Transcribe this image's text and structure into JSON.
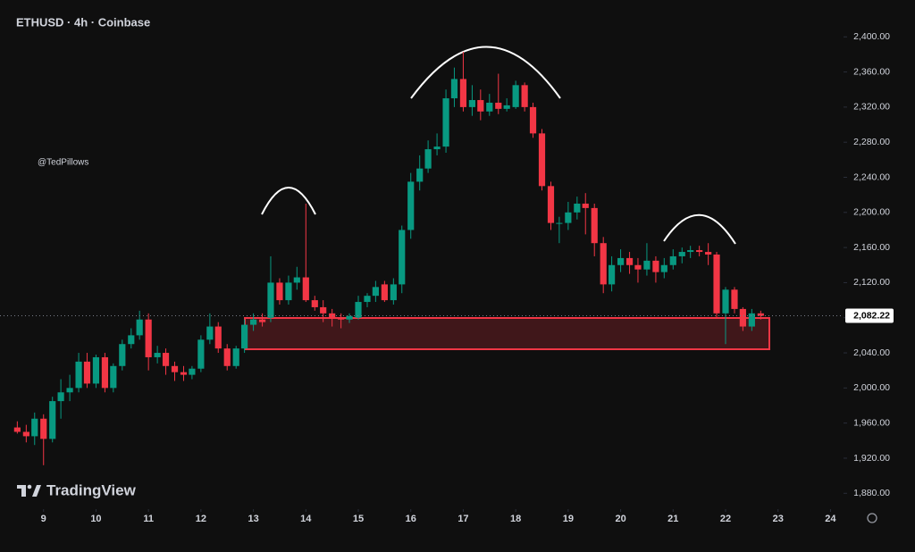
{
  "chart_data": {
    "type": "candlestick",
    "title": "ETHUSD · 4h · Coinbase",
    "watermark": "@TedPillows",
    "brand": "TradingView",
    "up_color": "#089981",
    "down_color": "#f23645",
    "xlim": [
      8.17,
      24.18
    ],
    "xticks": [
      9,
      10,
      11,
      12,
      13,
      14,
      15,
      16,
      17,
      18,
      19,
      20,
      21,
      22,
      23,
      24
    ],
    "ylim": [
      1864,
      2442
    ],
    "yticks": [
      {
        "value": 1880,
        "label": "1,880.00"
      },
      {
        "value": 1920,
        "label": "1,920.00"
      },
      {
        "value": 1960,
        "label": "1,960.00"
      },
      {
        "value": 2000,
        "label": "2,000.00"
      },
      {
        "value": 2040,
        "label": "2,040.00"
      },
      {
        "value": 2080,
        "label": "2,080.00"
      },
      {
        "value": 2120,
        "label": "2,120.00"
      },
      {
        "value": 2160,
        "label": "2,160.00"
      },
      {
        "value": 2200,
        "label": "2,200.00"
      },
      {
        "value": 2240,
        "label": "2,240.00"
      },
      {
        "value": 2280,
        "label": "2,280.00"
      },
      {
        "value": 2320,
        "label": "2,320.00"
      },
      {
        "value": 2360,
        "label": "2,360.00"
      },
      {
        "value": 2400,
        "label": "2,400.00"
      }
    ],
    "last_price": {
      "value": 2082.22,
      "label": "2,082.22"
    },
    "x": [
      8.5,
      8.67,
      8.83,
      9,
      9.17,
      9.33,
      9.5,
      9.67,
      9.83,
      10,
      10.17,
      10.33,
      10.5,
      10.67,
      10.83,
      11,
      11.17,
      11.33,
      11.5,
      11.67,
      11.83,
      12,
      12.17,
      12.33,
      12.5,
      12.67,
      12.83,
      13,
      13.17,
      13.33,
      13.5,
      13.67,
      13.83,
      14,
      14.17,
      14.33,
      14.5,
      14.67,
      14.83,
      15,
      15.17,
      15.33,
      15.5,
      15.67,
      15.83,
      16,
      16.17,
      16.33,
      16.5,
      16.67,
      16.83,
      17,
      17.17,
      17.33,
      17.5,
      17.67,
      17.83,
      18,
      18.17,
      18.33,
      18.5,
      18.67,
      18.83,
      19,
      19.17,
      19.33,
      19.5,
      19.67,
      19.83,
      20,
      20.17,
      20.33,
      20.5,
      20.67,
      20.83,
      21,
      21.17,
      21.33,
      21.5,
      21.67,
      21.83,
      22,
      22.17,
      22.33,
      22.5,
      22.67
    ],
    "open": [
      1955,
      1950,
      1945,
      1965,
      1942,
      1985,
      1995,
      2000,
      2030,
      2005,
      2035,
      2000,
      2025,
      2050,
      2060,
      2078,
      2035,
      2040,
      2025,
      2018,
      2015,
      2022,
      2055,
      2070,
      2045,
      2025,
      2045,
      2072,
      2078,
      2080,
      2120,
      2100,
      2120,
      2126,
      2100,
      2092,
      2085,
      2080,
      2078,
      2080,
      2098,
      2105,
      2118,
      2100,
      2118,
      2180,
      2235,
      2250,
      2272,
      2275,
      2330,
      2352,
      2320,
      2328,
      2315,
      2325,
      2318,
      2320,
      2345,
      2320,
      2290,
      2230,
      2188,
      2188,
      2200,
      2210,
      2205,
      2165,
      2118,
      2140,
      2148,
      2140,
      2135,
      2145,
      2132,
      2140,
      2150,
      2155,
      2157,
      2155,
      2152,
      2085,
      2112,
      2090,
      2070,
      2085
    ],
    "high": [
      1962,
      1958,
      1972,
      1970,
      1990,
      2010,
      2015,
      2040,
      2040,
      2038,
      2040,
      2028,
      2055,
      2068,
      2088,
      2085,
      2048,
      2045,
      2030,
      2025,
      2025,
      2060,
      2085,
      2075,
      2050,
      2048,
      2078,
      2085,
      2085,
      2150,
      2125,
      2128,
      2138,
      2210,
      2105,
      2100,
      2090,
      2085,
      2085,
      2105,
      2108,
      2122,
      2122,
      2125,
      2185,
      2245,
      2265,
      2282,
      2290,
      2340,
      2365,
      2383,
      2345,
      2340,
      2335,
      2358,
      2330,
      2350,
      2348,
      2325,
      2295,
      2235,
      2195,
      2212,
      2218,
      2222,
      2210,
      2172,
      2150,
      2158,
      2155,
      2148,
      2165,
      2150,
      2148,
      2158,
      2160,
      2162,
      2162,
      2165,
      2155,
      2115,
      2115,
      2092,
      2090,
      2088
    ],
    "low": [
      1948,
      1938,
      1935,
      1912,
      1938,
      1965,
      1985,
      1995,
      2000,
      2000,
      1995,
      1995,
      2020,
      2045,
      2055,
      2020,
      2028,
      2015,
      2008,
      2008,
      2010,
      2018,
      2050,
      2040,
      2020,
      2022,
      2040,
      2065,
      2070,
      2075,
      2095,
      2095,
      2112,
      2098,
      2088,
      2075,
      2070,
      2068,
      2074,
      2078,
      2092,
      2098,
      2098,
      2095,
      2108,
      2170,
      2225,
      2245,
      2265,
      2268,
      2320,
      2315,
      2310,
      2305,
      2310,
      2312,
      2315,
      2318,
      2315,
      2285,
      2225,
      2180,
      2165,
      2180,
      2192,
      2175,
      2150,
      2108,
      2110,
      2132,
      2130,
      2120,
      2128,
      2120,
      2125,
      2135,
      2142,
      2148,
      2150,
      2140,
      2080,
      2050,
      2085,
      2065,
      2065,
      2078
    ],
    "close": [
      1950,
      1945,
      1965,
      1942,
      1985,
      1995,
      2000,
      2030,
      2005,
      2035,
      2000,
      2025,
      2050,
      2060,
      2078,
      2035,
      2040,
      2025,
      2018,
      2015,
      2022,
      2055,
      2070,
      2045,
      2025,
      2045,
      2072,
      2078,
      2075,
      2120,
      2100,
      2120,
      2126,
      2100,
      2092,
      2085,
      2080,
      2078,
      2082,
      2098,
      2105,
      2115,
      2100,
      2118,
      2180,
      2235,
      2250,
      2272,
      2275,
      2330,
      2352,
      2320,
      2328,
      2315,
      2325,
      2318,
      2322,
      2345,
      2320,
      2290,
      2230,
      2188,
      2188,
      2200,
      2210,
      2205,
      2165,
      2118,
      2140,
      2148,
      2140,
      2135,
      2145,
      2132,
      2140,
      2150,
      2155,
      2157,
      2155,
      2152,
      2085,
      2112,
      2090,
      2070,
      2085,
      2082.22
    ]
  }
}
